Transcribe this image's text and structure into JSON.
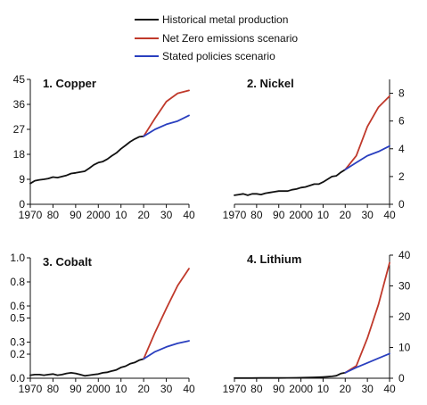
{
  "legend": {
    "position": "top-center",
    "entries": [
      {
        "label": "Historical metal production",
        "color": "#111111"
      },
      {
        "label": "Net Zero emissions scenario",
        "color": "#c0392b"
      },
      {
        "label": "Stated policies scenario",
        "color": "#2a3fbf"
      }
    ]
  },
  "chart_data": [
    {
      "type": "line",
      "title": "1. Copper",
      "y_axis_side": "left",
      "ylim": [
        0,
        45
      ],
      "yticks": [
        0,
        9,
        18,
        27,
        36,
        45
      ],
      "xlim": [
        1970,
        2040
      ],
      "xticks": [
        1970,
        1980,
        1990,
        2000,
        2010,
        2020,
        2030,
        2040
      ],
      "xtick_labels": [
        "1970",
        "80",
        "90",
        "2000",
        "10",
        "20",
        "30",
        "40"
      ],
      "series": [
        {
          "name": "Historical metal production",
          "color": "#111111",
          "x": [
            1970,
            1972,
            1974,
            1976,
            1978,
            1980,
            1982,
            1984,
            1986,
            1988,
            1990,
            1992,
            1994,
            1996,
            1998,
            2000,
            2002,
            2004,
            2006,
            2008,
            2010,
            2012,
            2014,
            2016,
            2018,
            2020
          ],
          "values": [
            7.5,
            8.5,
            8.8,
            9.0,
            9.3,
            9.8,
            9.6,
            10.0,
            10.4,
            11.1,
            11.3,
            11.6,
            11.9,
            13.0,
            14.2,
            15.0,
            15.4,
            16.3,
            17.5,
            18.5,
            20.0,
            21.2,
            22.5,
            23.5,
            24.3,
            24.5
          ]
        },
        {
          "name": "Net Zero emissions scenario",
          "color": "#c0392b",
          "x": [
            2020,
            2025,
            2030,
            2035,
            2040
          ],
          "values": [
            24.5,
            31.0,
            37.0,
            40.0,
            41.0
          ]
        },
        {
          "name": "Stated policies scenario",
          "color": "#2a3fbf",
          "x": [
            2020,
            2025,
            2030,
            2035,
            2040
          ],
          "values": [
            24.5,
            27.0,
            28.8,
            30.0,
            32.0
          ]
        }
      ]
    },
    {
      "type": "line",
      "title": "2. Nickel",
      "y_axis_side": "right",
      "ylim": [
        0,
        9
      ],
      "yticks": [
        0,
        2,
        4,
        6,
        8
      ],
      "xlim": [
        1970,
        2040
      ],
      "xticks": [
        1970,
        1980,
        1990,
        2000,
        2010,
        2020,
        2030,
        2040
      ],
      "xtick_labels": [
        "1970",
        "80",
        "90",
        "2000",
        "10",
        "20",
        "30",
        "40"
      ],
      "series": [
        {
          "name": "Historical metal production",
          "color": "#111111",
          "x": [
            1970,
            1972,
            1974,
            1976,
            1978,
            1980,
            1982,
            1984,
            1986,
            1988,
            1990,
            1992,
            1994,
            1996,
            1998,
            2000,
            2002,
            2004,
            2006,
            2008,
            2010,
            2012,
            2014,
            2016,
            2018,
            2020
          ],
          "values": [
            0.65,
            0.7,
            0.75,
            0.65,
            0.75,
            0.75,
            0.7,
            0.8,
            0.85,
            0.9,
            0.95,
            0.95,
            0.95,
            1.05,
            1.1,
            1.2,
            1.25,
            1.35,
            1.45,
            1.45,
            1.6,
            1.8,
            2.0,
            2.05,
            2.3,
            2.5
          ]
        },
        {
          "name": "Net Zero emissions scenario",
          "color": "#c0392b",
          "x": [
            2020,
            2025,
            2030,
            2035,
            2040
          ],
          "values": [
            2.5,
            3.5,
            5.6,
            7.0,
            7.8
          ]
        },
        {
          "name": "Stated policies scenario",
          "color": "#2a3fbf",
          "x": [
            2020,
            2025,
            2030,
            2035,
            2040
          ],
          "values": [
            2.5,
            3.0,
            3.5,
            3.8,
            4.2
          ]
        }
      ]
    },
    {
      "type": "line",
      "title": "3. Cobalt",
      "y_axis_side": "left",
      "ylim": [
        0,
        1.0
      ],
      "yticks": [
        0.0,
        0.2,
        0.3,
        0.5,
        0.6,
        0.8,
        1.0
      ],
      "ytick_labels": [
        "0.0",
        "0.2",
        "0.3",
        "0.5",
        "0.6",
        "0.8",
        "1.0"
      ],
      "xlim": [
        1970,
        2040
      ],
      "xticks": [
        1970,
        1980,
        1990,
        2000,
        2010,
        2020,
        2030,
        2040
      ],
      "xtick_labels": [
        "1970",
        "80",
        "90",
        "2000",
        "10",
        "20",
        "30",
        "40"
      ],
      "series": [
        {
          "name": "Historical metal production",
          "color": "#111111",
          "x": [
            1970,
            1972,
            1974,
            1976,
            1978,
            1980,
            1982,
            1984,
            1986,
            1988,
            1990,
            1992,
            1994,
            1996,
            1998,
            2000,
            2002,
            2004,
            2006,
            2008,
            2010,
            2012,
            2014,
            2016,
            2018,
            2020
          ],
          "values": [
            0.025,
            0.03,
            0.03,
            0.025,
            0.03,
            0.035,
            0.025,
            0.03,
            0.04,
            0.045,
            0.04,
            0.03,
            0.02,
            0.025,
            0.03,
            0.035,
            0.045,
            0.05,
            0.06,
            0.07,
            0.09,
            0.1,
            0.12,
            0.13,
            0.15,
            0.16
          ]
        },
        {
          "name": "Net Zero emissions scenario",
          "color": "#c0392b",
          "x": [
            2020,
            2025,
            2030,
            2035,
            2040
          ],
          "values": [
            0.16,
            0.38,
            0.58,
            0.77,
            0.91
          ]
        },
        {
          "name": "Stated policies scenario",
          "color": "#2a3fbf",
          "x": [
            2020,
            2025,
            2030,
            2035,
            2040
          ],
          "values": [
            0.16,
            0.22,
            0.26,
            0.29,
            0.31
          ]
        }
      ]
    },
    {
      "type": "line",
      "title": "4. Lithium",
      "y_axis_side": "right",
      "ylim": [
        0,
        40
      ],
      "yticks": [
        0,
        10,
        20,
        30,
        40
      ],
      "xlim": [
        1970,
        2040
      ],
      "xticks": [
        1970,
        1980,
        1990,
        2000,
        2010,
        2020,
        2030,
        2040
      ],
      "xtick_labels": [
        "1970",
        "80",
        "90",
        "2000",
        "10",
        "20",
        "30",
        "40"
      ],
      "series": [
        {
          "name": "Historical metal production",
          "color": "#111111",
          "x": [
            1970,
            1974,
            1978,
            1982,
            1986,
            1990,
            1994,
            1998,
            2002,
            2006,
            2010,
            2012,
            2014,
            2016,
            2018,
            2020
          ],
          "values": [
            0.05,
            0.06,
            0.07,
            0.08,
            0.09,
            0.1,
            0.12,
            0.15,
            0.2,
            0.3,
            0.4,
            0.5,
            0.6,
            0.8,
            1.5,
            1.8
          ]
        },
        {
          "name": "Net Zero emissions scenario",
          "color": "#c0392b",
          "x": [
            2020,
            2025,
            2030,
            2035,
            2040
          ],
          "values": [
            1.8,
            4.0,
            13.0,
            24.0,
            37.5
          ]
        },
        {
          "name": "Stated policies scenario",
          "color": "#2a3fbf",
          "x": [
            2020,
            2025,
            2030,
            2035,
            2040
          ],
          "values": [
            1.8,
            3.5,
            5.0,
            6.5,
            8.0
          ]
        }
      ]
    }
  ]
}
